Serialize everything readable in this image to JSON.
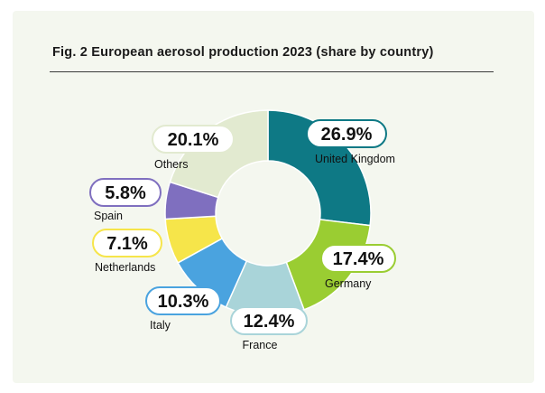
{
  "chart_data": {
    "type": "pie",
    "variant": "donut",
    "title": "Fig. 2  European aerosol production 2023 (share by country)",
    "unit": "%",
    "slices": [
      {
        "label": "United Kingdom",
        "value": 26.9,
        "value_label": "26.9%",
        "color": "#0e7985"
      },
      {
        "label": "Germany",
        "value": 17.4,
        "value_label": "17.4%",
        "color": "#9acd32"
      },
      {
        "label": "France",
        "value": 12.4,
        "value_label": "12.4%",
        "color": "#a9d4d9"
      },
      {
        "label": "Italy",
        "value": 10.3,
        "value_label": "10.3%",
        "color": "#4aa3df"
      },
      {
        "label": "Netherlands",
        "value": 7.1,
        "value_label": "7.1%",
        "color": "#f6e54a"
      },
      {
        "label": "Spain",
        "value": 5.8,
        "value_label": "5.8%",
        "color": "#7f6fbf"
      },
      {
        "label": "Others",
        "value": 20.1,
        "value_label": "20.1%",
        "color": "#e2ead0"
      }
    ],
    "start_angle_deg": 0,
    "direction": "clockwise",
    "legend": "none",
    "label_style": "pill-outlined"
  }
}
